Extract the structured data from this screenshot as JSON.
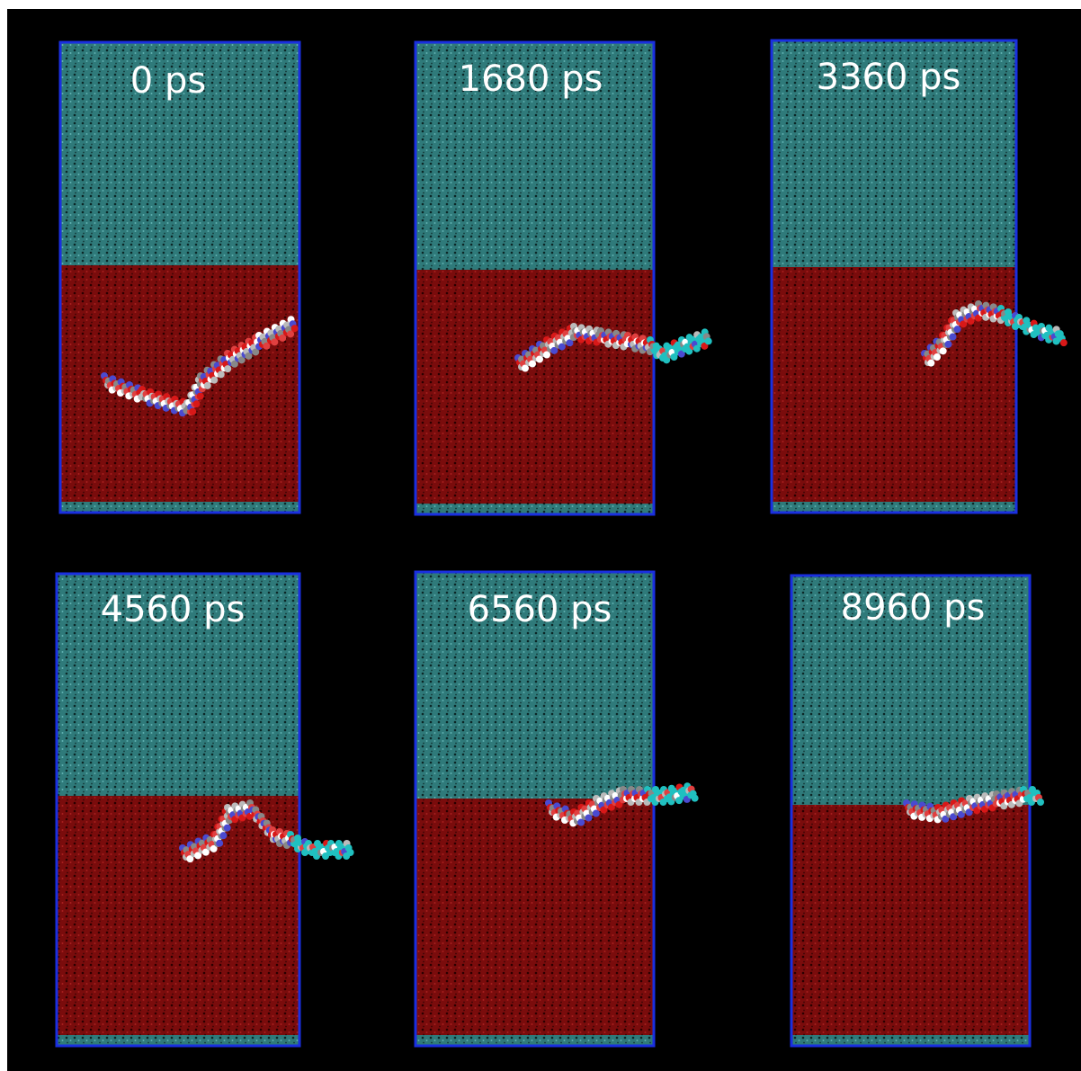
{
  "panels": [
    {
      "label": "0 ps"
    },
    {
      "label": "1680 ps"
    },
    {
      "label": "3360 ps"
    },
    {
      "label": "4560 ps"
    },
    {
      "label": "6560 ps"
    },
    {
      "label": "8960 ps"
    }
  ]
}
